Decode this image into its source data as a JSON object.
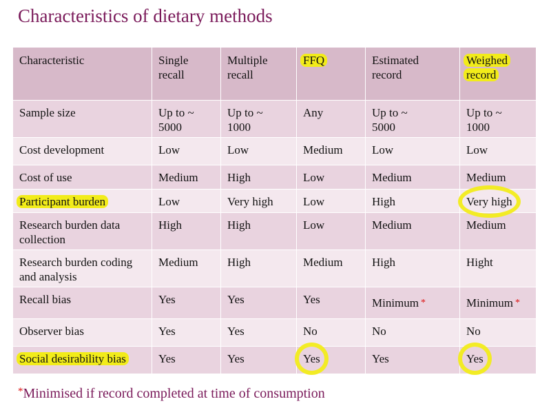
{
  "title": "Characteristics of dietary methods",
  "header": [
    "Characteristic",
    "Single\nrecall",
    "Multiple\nrecall",
    "FFQ",
    "Estimated\nrecord",
    "Weighed\nrecord"
  ],
  "rows": [
    {
      "label": "Sample size",
      "cells": [
        "Up to ~\n5000",
        "Up to ~\n1000",
        "Any",
        "Up to ~\n5000",
        "Up to ~\n1000"
      ]
    },
    {
      "label": "Cost development",
      "cells": [
        "Low",
        "Low",
        "Medium",
        "Low",
        "Low"
      ]
    },
    {
      "label": "Cost of use",
      "cells": [
        "Medium",
        "High",
        "Low",
        "Medium",
        "Medium"
      ]
    },
    {
      "label": "Participant burden",
      "cells": [
        "Low",
        "Very high",
        "Low",
        "High",
        "Very high"
      ]
    },
    {
      "label": "Research burden data\ncollection",
      "cells": [
        "High",
        "High",
        "Low",
        "Medium",
        "Medium"
      ]
    },
    {
      "label": "Research burden coding\nand analysis",
      "cells": [
        "Medium",
        "High",
        "Medium",
        "High",
        "Hight"
      ]
    },
    {
      "label": "Recall bias",
      "cells": [
        "Yes",
        "Yes",
        "Yes",
        "Minimum",
        "Minimum"
      ]
    },
    {
      "label": "Observer bias",
      "cells": [
        "Yes",
        "Yes",
        "No",
        "No",
        "No"
      ]
    },
    {
      "label": "Social desirability bias",
      "cells": [
        "Yes",
        "Yes",
        "Yes",
        "Yes",
        "Yes"
      ]
    }
  ],
  "asterisk": "*",
  "footnote": "Minimised if record completed at time of consumption",
  "colors": {
    "title": "#7a1a5a",
    "header_bg": "#d7b9c9",
    "row_dark": "#e9d3df",
    "row_light": "#f4e8ee",
    "highlight": "#f2ec1a",
    "asterisk": "#dd1111"
  }
}
